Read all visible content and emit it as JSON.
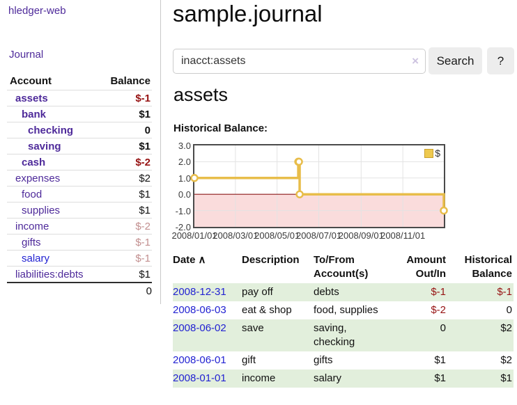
{
  "colors": {
    "link_purple": "#4e2a9a",
    "link_blue": "#2222d2",
    "negative_strong": "#961212",
    "negative_muted": "#c28f8f",
    "row_green": "#e2efdc",
    "chart_gold": "#e8bd4a",
    "chart_pink": "#fadcdc",
    "chart_zero_red": "#8b1a1a"
  },
  "sidebar": {
    "app_title": "hledger-web",
    "journal_link": "Journal",
    "accounts": {
      "header_account": "Account",
      "header_balance": "Balance",
      "rows": [
        {
          "name": "assets",
          "balance": "$-1",
          "indent": 1,
          "bold": true,
          "balance_tone": "neg"
        },
        {
          "name": "bank",
          "balance": "$1",
          "indent": 2,
          "bold": true,
          "balance_tone": "normal"
        },
        {
          "name": "checking",
          "balance": "0",
          "indent": 3,
          "bold": true,
          "balance_tone": "normal"
        },
        {
          "name": "saving",
          "balance": "$1",
          "indent": 3,
          "bold": true,
          "balance_tone": "normal"
        },
        {
          "name": "cash",
          "balance": "$-2",
          "indent": 2,
          "bold": true,
          "balance_tone": "neg"
        },
        {
          "name": "expenses",
          "balance": "$2",
          "indent": 1,
          "bold": false,
          "balance_tone": "normal"
        },
        {
          "name": "food",
          "balance": "$1",
          "indent": 2,
          "bold": false,
          "balance_tone": "normal"
        },
        {
          "name": "supplies",
          "balance": "$1",
          "indent": 2,
          "bold": false,
          "balance_tone": "normal"
        },
        {
          "name": "income",
          "balance": "$-2",
          "indent": 1,
          "bold": false,
          "balance_tone": "negmuted"
        },
        {
          "name": "gifts",
          "balance": "$-1",
          "indent": 2,
          "bold": false,
          "balance_tone": "negmuted"
        },
        {
          "name": "salary",
          "balance": "$-1",
          "indent": 2,
          "bold": false,
          "balance_tone": "negmuted",
          "link_tone": "blue"
        },
        {
          "name": "liabilities:debts",
          "balance": "$1",
          "indent": 1,
          "bold": false,
          "balance_tone": "normal"
        }
      ],
      "total": "0"
    }
  },
  "main": {
    "title": "sample.journal",
    "search": {
      "value": "inacct:assets",
      "clear_icon": "×",
      "search_button": "Search",
      "help_button": "?"
    },
    "account_heading": "assets",
    "chart_label": "Historical Balance:",
    "register": {
      "headers": [
        "Date",
        "Description",
        "To/From Account(s)",
        "Amount Out/In",
        "Historical Balance"
      ],
      "sort_indicator": "∧",
      "rows": [
        {
          "date": "2008-12-31",
          "description": "pay off",
          "accounts": "debts",
          "amount": "$-1",
          "balance": "$-1"
        },
        {
          "date": "2008-06-03",
          "description": "eat & shop",
          "accounts": "food, supplies",
          "amount": "$-2",
          "balance": "0"
        },
        {
          "date": "2008-06-02",
          "description": "save",
          "accounts": "saving, checking",
          "amount": "0",
          "balance": "$2"
        },
        {
          "date": "2008-06-01",
          "description": "gift",
          "accounts": "gifts",
          "amount": "$1",
          "balance": "$2"
        },
        {
          "date": "2008-01-01",
          "description": "income",
          "accounts": "salary",
          "amount": "$1",
          "balance": "$1"
        }
      ]
    }
  },
  "chart_data": {
    "type": "line",
    "style": "step",
    "title": "Historical Balance:",
    "legend": [
      {
        "name": "$",
        "color": "#e8bd4a"
      }
    ],
    "legend_position": "top-right",
    "grid": true,
    "x": [
      "2008-01-01",
      "2008-06-01",
      "2008-06-02",
      "2008-06-03",
      "2008-12-31"
    ],
    "x_days": [
      0,
      152,
      153,
      154,
      365
    ],
    "y": [
      1,
      2,
      2,
      0,
      -1
    ],
    "xlim_days": [
      0,
      365
    ],
    "ylim": [
      -2,
      3
    ],
    "y_ticks": [
      "3.0",
      "2.0",
      "1.0",
      "0.0",
      "-1.0",
      "-2.0"
    ],
    "y_tick_values": [
      3,
      2,
      1,
      0,
      -1,
      -2
    ],
    "x_ticks": [
      "2008/01/01",
      "2008/03/01",
      "2008/05/01",
      "2008/07/01",
      "2008/09/01",
      "2008/11/01"
    ],
    "x_tick_days": [
      0,
      60,
      121,
      182,
      244,
      305
    ],
    "negative_region_fill": "#fadcdc",
    "zero_line_color": "#8b1a1a"
  }
}
